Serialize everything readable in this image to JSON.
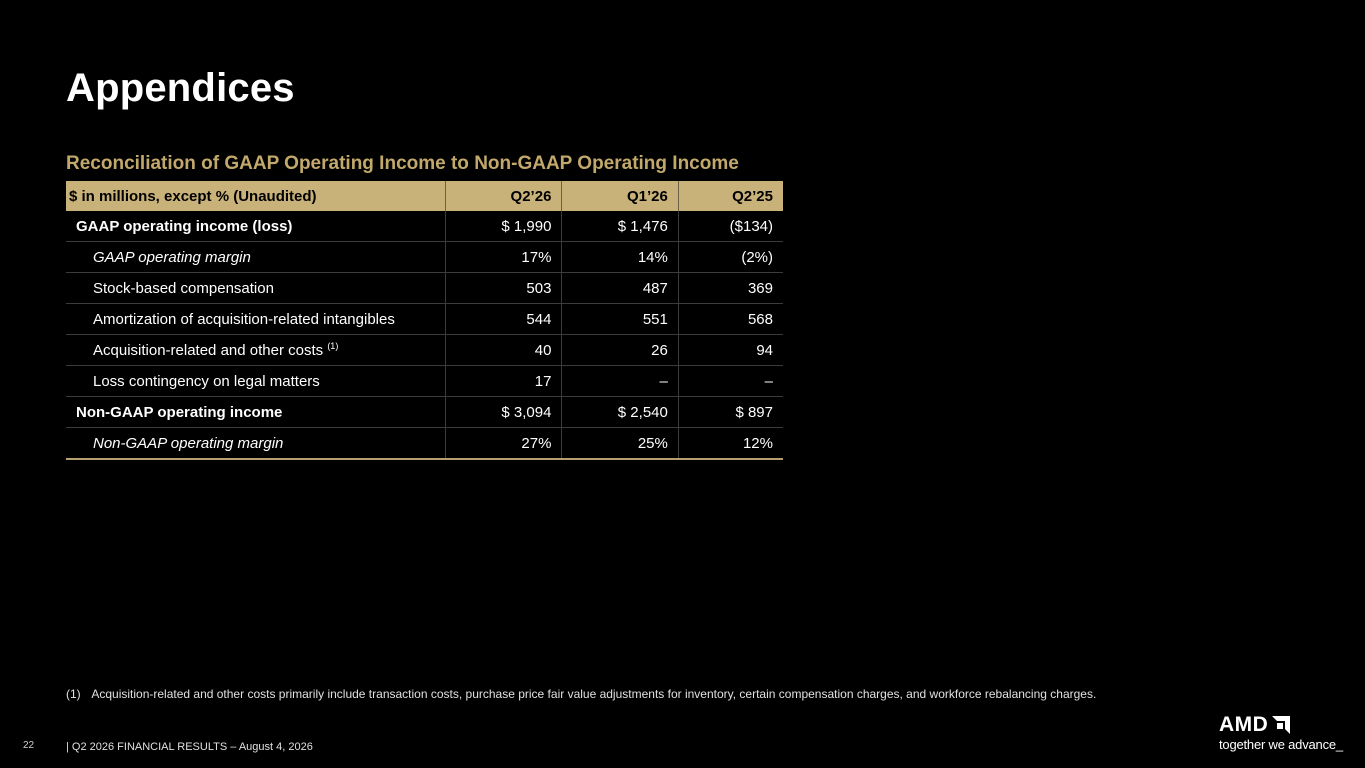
{
  "slide": {
    "title": "Appendices",
    "subtitle": "Reconciliation of GAAP Operating Income to Non-GAAP Operating Income",
    "page_number": "22",
    "footer": "|   Q2 2026 FINANCIAL RESULTS – August 4, 2026"
  },
  "table": {
    "headers": [
      "$ in millions, except % (Unaudited)",
      "Q2’26",
      "Q1’26",
      "Q2’25"
    ],
    "rows": [
      {
        "label": "GAAP operating income (loss)",
        "values": [
          "$ 1,990",
          "$ 1,476",
          "($134)"
        ],
        "bold": true,
        "italic": false,
        "indent": 0
      },
      {
        "label": "GAAP operating margin",
        "values": [
          "17%",
          "14%",
          "(2%)"
        ],
        "bold": false,
        "italic": true,
        "indent": 1
      },
      {
        "label": "Stock-based compensation",
        "values": [
          "503",
          "487",
          "369"
        ],
        "bold": false,
        "italic": false,
        "indent": 1
      },
      {
        "label": "Amortization of acquisition-related intangibles",
        "values": [
          "544",
          "551",
          "568"
        ],
        "bold": false,
        "italic": false,
        "indent": 1
      },
      {
        "label": "Acquisition-related and other costs",
        "footnote": "(1)",
        "values": [
          "40",
          "26",
          "94"
        ],
        "bold": false,
        "italic": false,
        "indent": 1
      },
      {
        "label": "Loss contingency on legal matters",
        "values": [
          "17",
          "–",
          "–"
        ],
        "bold": false,
        "italic": false,
        "indent": 1
      },
      {
        "label": "Non-GAAP operating income",
        "values": [
          "$ 3,094",
          "$ 2,540",
          "$ 897"
        ],
        "bold": true,
        "italic": false,
        "indent": 0
      },
      {
        "label": "Non-GAAP operating margin",
        "values": [
          "27%",
          "25%",
          "12%"
        ],
        "bold": false,
        "italic": true,
        "indent": 1
      }
    ]
  },
  "footnotes": [
    {
      "number": "(1)",
      "text": "Acquisition-related and other costs primarily include transaction costs, purchase price fair value adjustments for inventory, certain compensation charges, and workforce rebalancing charges."
    }
  ],
  "branding": {
    "logo_text": "AMD",
    "logo_icon": "amd-arrow-icon",
    "tagline": "together we advance_"
  },
  "colors": {
    "background": "#000000",
    "accent_gold": "#c2a96b",
    "header_fill": "#c8b27a",
    "text": "#ffffff"
  }
}
